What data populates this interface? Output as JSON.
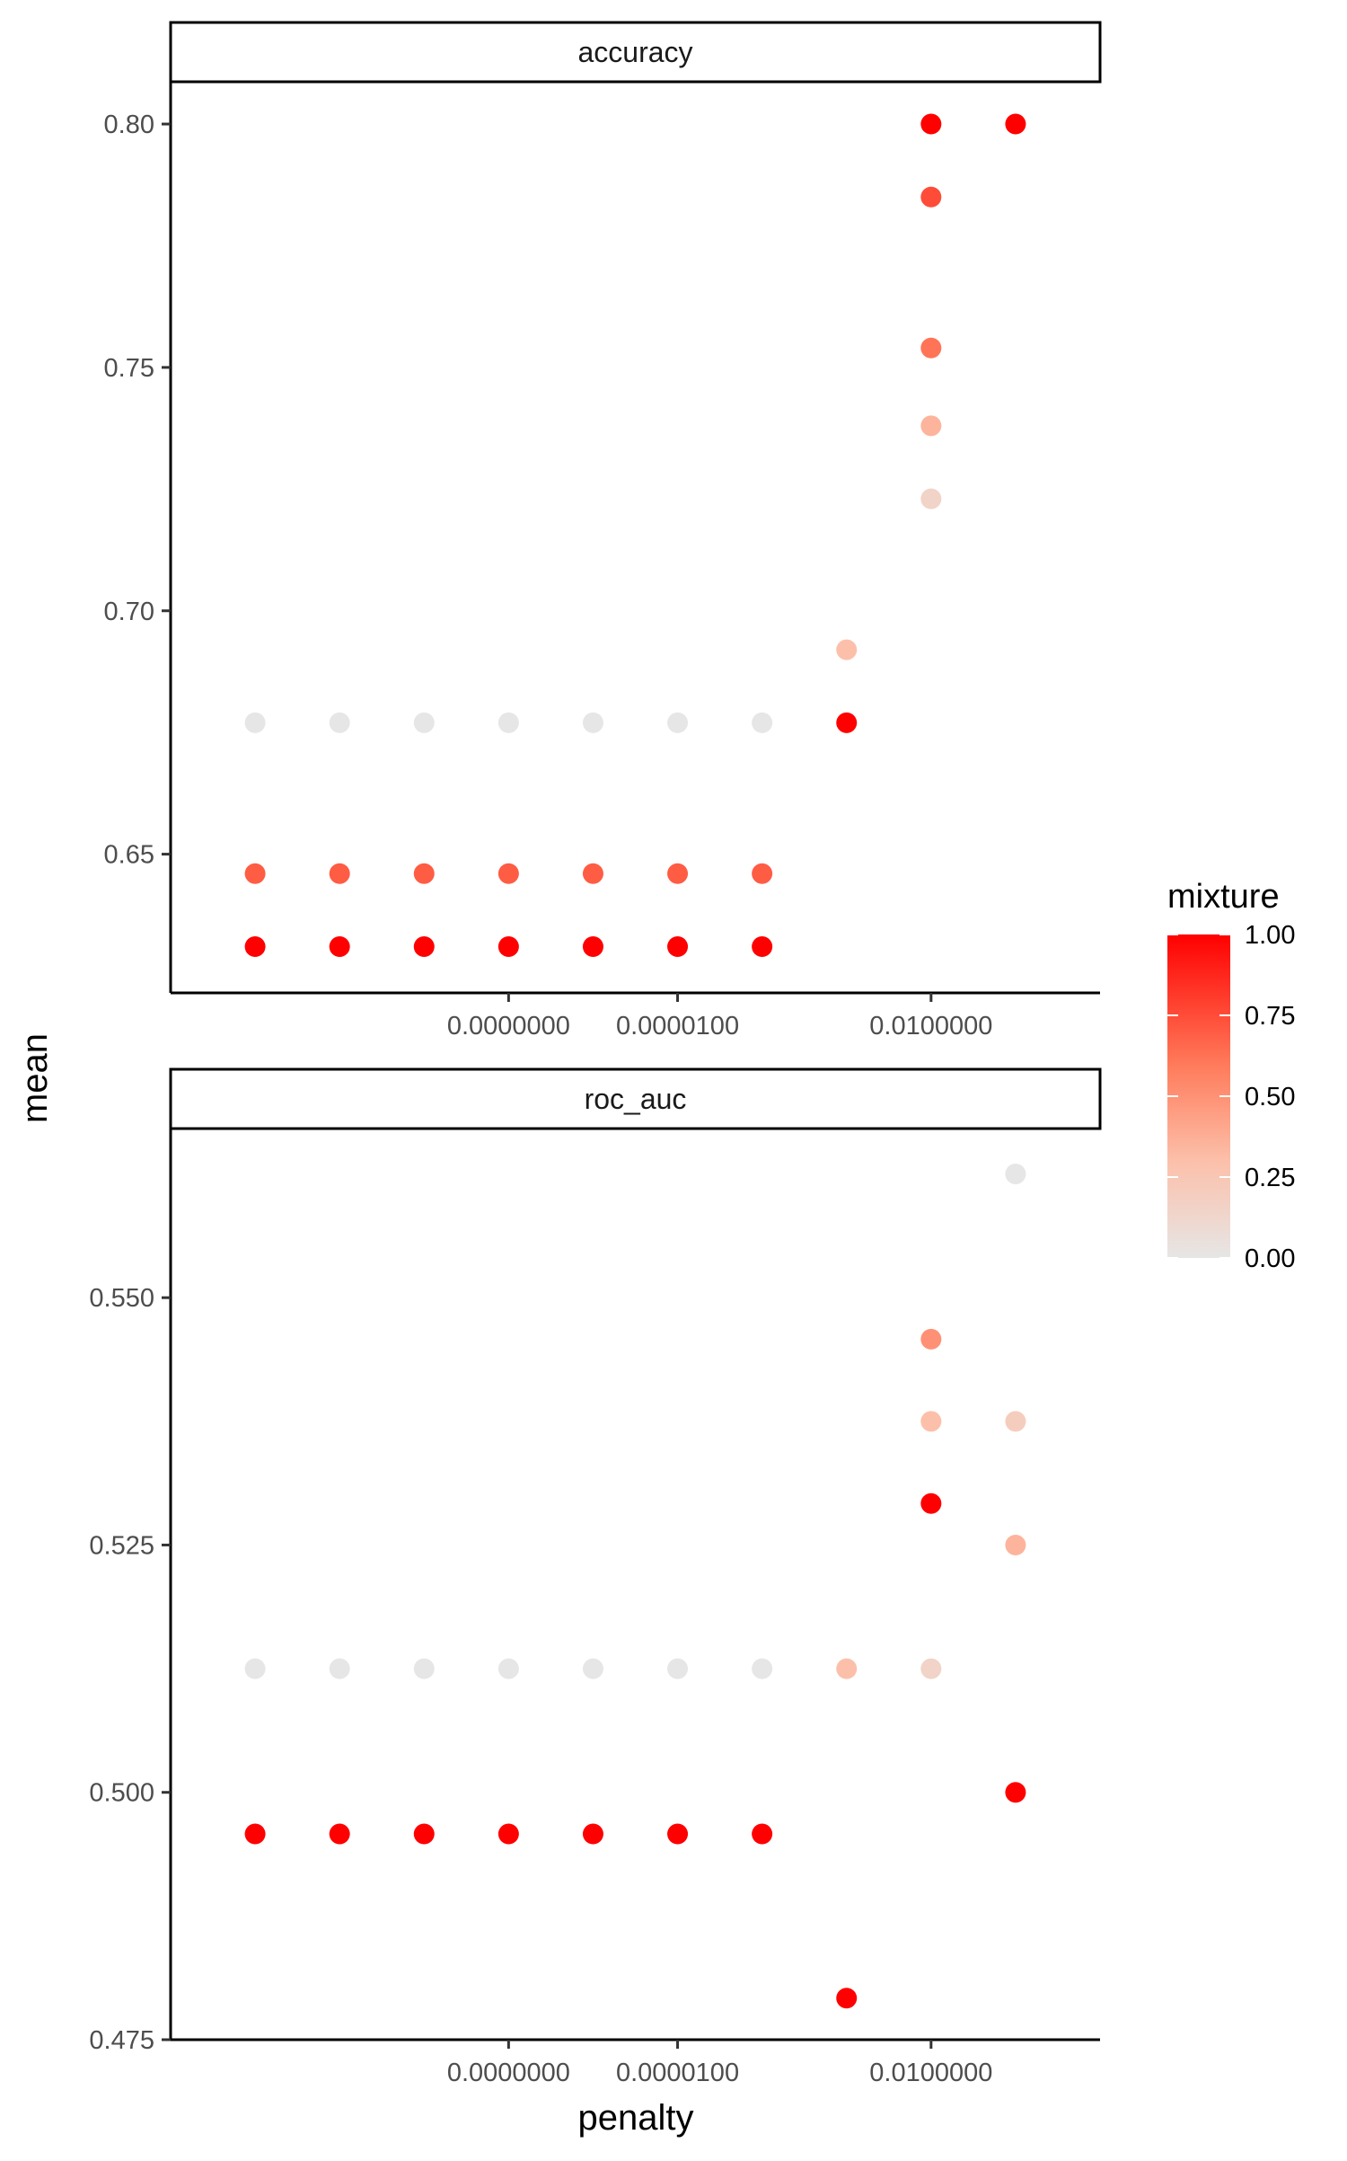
{
  "chart_data": {
    "type": "scatter",
    "xlabel": "penalty",
    "ylabel": "mean",
    "x_scale": "log10",
    "x_range": [
      1e-11,
      1
    ],
    "x_ticks": [
      {
        "value": 1e-07,
        "label": "0.0000000"
      },
      {
        "value": 1e-05,
        "label": "0.0000100"
      },
      {
        "value": 0.01,
        "label": "0.0100000"
      }
    ],
    "color": {
      "variable": "mixture",
      "low": "#e6e6e6",
      "high": "#ff0000",
      "range": [
        0,
        1
      ],
      "ticks": [
        "1.00",
        "0.75",
        "0.50",
        "0.25",
        "0.00"
      ]
    },
    "facets": [
      {
        "label": "accuracy",
        "ylim": [
          0.6215,
          0.8085
        ],
        "y_ticks": [
          "0.65",
          "0.70",
          "0.75",
          "0.80"
        ],
        "points": [
          {
            "x": 1e-10,
            "y": 0.677,
            "mixture": 0
          },
          {
            "x": 1e-10,
            "y": 0.646,
            "mixture": 0.7
          },
          {
            "x": 1e-10,
            "y": 0.631,
            "mixture": 1
          },
          {
            "x": 1e-09,
            "y": 0.677,
            "mixture": 0
          },
          {
            "x": 1e-09,
            "y": 0.646,
            "mixture": 0.7
          },
          {
            "x": 1e-09,
            "y": 0.631,
            "mixture": 1
          },
          {
            "x": 1e-08,
            "y": 0.677,
            "mixture": 0
          },
          {
            "x": 1e-08,
            "y": 0.646,
            "mixture": 0.7
          },
          {
            "x": 1e-08,
            "y": 0.631,
            "mixture": 1
          },
          {
            "x": 1e-07,
            "y": 0.677,
            "mixture": 0
          },
          {
            "x": 1e-07,
            "y": 0.646,
            "mixture": 0.7
          },
          {
            "x": 1e-07,
            "y": 0.631,
            "mixture": 1
          },
          {
            "x": 1e-06,
            "y": 0.677,
            "mixture": 0
          },
          {
            "x": 1e-06,
            "y": 0.646,
            "mixture": 0.7
          },
          {
            "x": 1e-06,
            "y": 0.631,
            "mixture": 1
          },
          {
            "x": 1e-05,
            "y": 0.677,
            "mixture": 0
          },
          {
            "x": 1e-05,
            "y": 0.646,
            "mixture": 0.7
          },
          {
            "x": 1e-05,
            "y": 0.631,
            "mixture": 1
          },
          {
            "x": 0.0001,
            "y": 0.677,
            "mixture": 0
          },
          {
            "x": 0.0001,
            "y": 0.646,
            "mixture": 0.7
          },
          {
            "x": 0.0001,
            "y": 0.631,
            "mixture": 1
          },
          {
            "x": 0.001,
            "y": 0.692,
            "mixture": 0.3
          },
          {
            "x": 0.001,
            "y": 0.677,
            "mixture": 1
          },
          {
            "x": 0.01,
            "y": 0.8,
            "mixture": 1
          },
          {
            "x": 0.01,
            "y": 0.785,
            "mixture": 0.75
          },
          {
            "x": 0.01,
            "y": 0.754,
            "mixture": 0.62
          },
          {
            "x": 0.01,
            "y": 0.738,
            "mixture": 0.35
          },
          {
            "x": 0.01,
            "y": 0.723,
            "mixture": 0.15
          },
          {
            "x": 0.1,
            "y": 0.8,
            "mixture": 1
          }
        ]
      },
      {
        "label": "roc_auc",
        "ylim": [
          0.475,
          0.567
        ],
        "y_ticks": [
          "0.475",
          "0.500",
          "0.525",
          "0.550"
        ],
        "points": [
          {
            "x": 1e-10,
            "y": 0.5125,
            "mixture": 0
          },
          {
            "x": 1e-10,
            "y": 0.4958,
            "mixture": 1
          },
          {
            "x": 1e-09,
            "y": 0.5125,
            "mixture": 0
          },
          {
            "x": 1e-09,
            "y": 0.4958,
            "mixture": 1
          },
          {
            "x": 1e-08,
            "y": 0.5125,
            "mixture": 0
          },
          {
            "x": 1e-08,
            "y": 0.4958,
            "mixture": 1
          },
          {
            "x": 1e-07,
            "y": 0.5125,
            "mixture": 0
          },
          {
            "x": 1e-07,
            "y": 0.4958,
            "mixture": 1
          },
          {
            "x": 1e-06,
            "y": 0.5125,
            "mixture": 0
          },
          {
            "x": 1e-06,
            "y": 0.4958,
            "mixture": 1
          },
          {
            "x": 1e-05,
            "y": 0.5125,
            "mixture": 0
          },
          {
            "x": 1e-05,
            "y": 0.4958,
            "mixture": 1
          },
          {
            "x": 0.0001,
            "y": 0.5125,
            "mixture": 0
          },
          {
            "x": 0.0001,
            "y": 0.4958,
            "mixture": 1
          },
          {
            "x": 0.001,
            "y": 0.5125,
            "mixture": 0.3
          },
          {
            "x": 0.001,
            "y": 0.4792,
            "mixture": 1
          },
          {
            "x": 0.01,
            "y": 0.5458,
            "mixture": 0.5
          },
          {
            "x": 0.01,
            "y": 0.5375,
            "mixture": 0.3
          },
          {
            "x": 0.01,
            "y": 0.5292,
            "mixture": 1
          },
          {
            "x": 0.01,
            "y": 0.5125,
            "mixture": 0.15
          },
          {
            "x": 0.1,
            "y": 0.5625,
            "mixture": 0
          },
          {
            "x": 0.1,
            "y": 0.5375,
            "mixture": 0.2
          },
          {
            "x": 0.1,
            "y": 0.525,
            "mixture": 0.35
          },
          {
            "x": 0.1,
            "y": 0.5,
            "mixture": 1
          }
        ]
      }
    ]
  }
}
